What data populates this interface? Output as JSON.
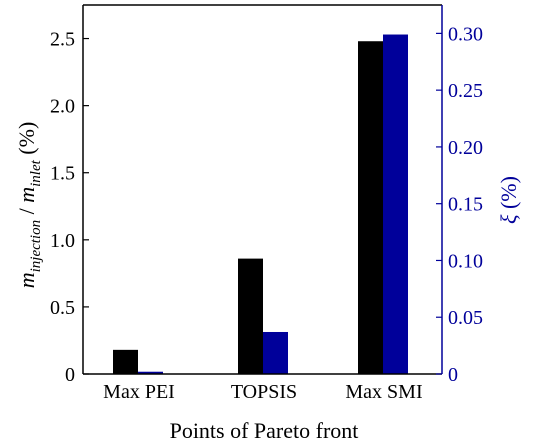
{
  "chart_data": {
    "type": "bar",
    "categories": [
      "Max PEI",
      "TOPSIS",
      "Max SMI"
    ],
    "series": [
      {
        "axis": "left",
        "color": "#000000",
        "values": [
          0.18,
          0.86,
          2.48
        ]
      },
      {
        "axis": "right",
        "color": "#00009a",
        "values": [
          0.002,
          0.037,
          0.299
        ]
      }
    ],
    "xlabel": "Points of Pareto front",
    "ylabel_left": {
      "base1": "m",
      "sub1": "injection",
      "sep": " / ",
      "base2": "m",
      "sub2": "inlet",
      "unit": " (%)"
    },
    "ylabel_right": {
      "sym": "ξ",
      "unit": " (%)"
    },
    "ylim_left": [
      0,
      2.75
    ],
    "ylim_right": [
      0,
      0.325
    ],
    "yticks_left": [
      "0",
      "0.5",
      "1.0",
      "1.5",
      "2.0",
      "2.5"
    ],
    "yticks_right": [
      "0",
      "0.05",
      "0.10",
      "0.15",
      "0.20",
      "0.25",
      "0.30"
    ],
    "right_axis_color": "#00009a",
    "grid": false,
    "legend": "none"
  }
}
